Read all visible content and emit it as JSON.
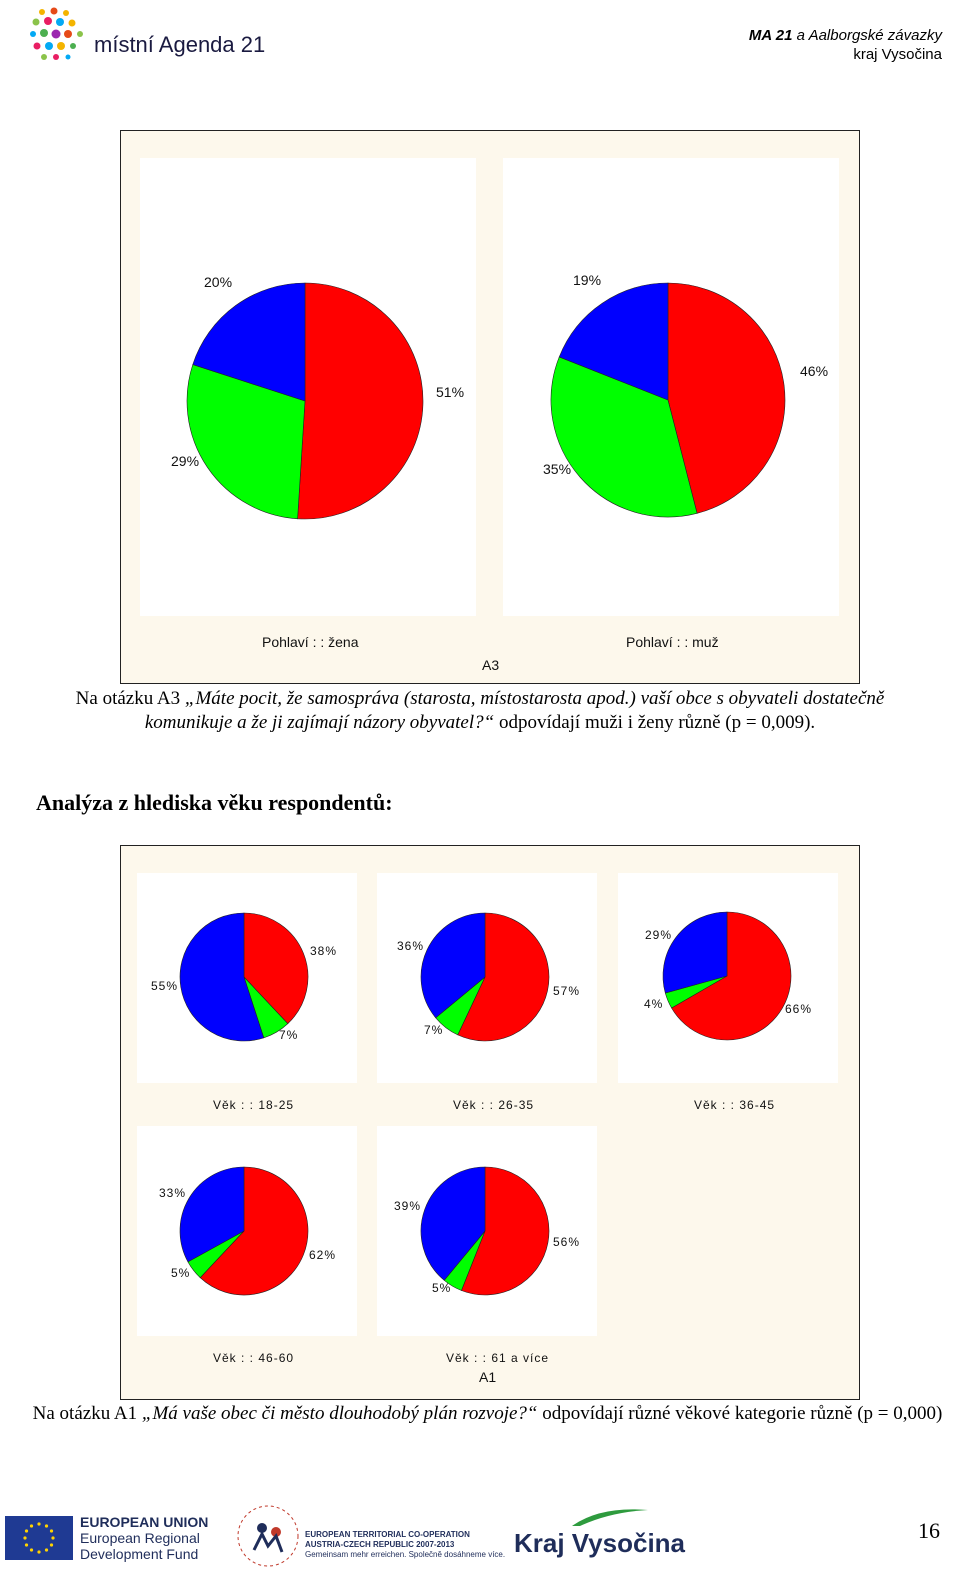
{
  "header": {
    "logo_text": "místní Agenda 21",
    "right_line1_bold": "MA 21",
    "right_line1_rest": " a Aalborgské závazky",
    "right_line2": "kraj Vysočina"
  },
  "chart_top": {
    "type": "pie",
    "overall_label": "A3",
    "colors": [
      "#ff0000",
      "#00ff00",
      "#0000ff"
    ],
    "panels": [
      {
        "label": "Pohlaví : : žena",
        "values": [
          51,
          29,
          20
        ],
        "value_labels": [
          "51%",
          "29%",
          "20%"
        ]
      },
      {
        "label": "Pohlaví : : muž",
        "values": [
          46,
          35,
          19
        ],
        "value_labels": [
          "46%",
          "35%",
          "19%"
        ]
      }
    ]
  },
  "paragraph1": {
    "prefix": "Na otázku A3 ",
    "question": "„Máte pocit, že samospráva (starosta, místostarosta apod.) vaší obce s obyvateli dostatečně komunikuje a že ji zajímají názory obyvatel?“",
    "suffix": " odpovídají muži i ženy různě (p = 0,009)."
  },
  "heading": "Analýza z hlediska věku respondentů:",
  "chart_bottom": {
    "type": "pie",
    "overall_label": "A1",
    "colors": [
      "#ff0000",
      "#00ff00",
      "#0000ff"
    ],
    "panels": [
      {
        "label": "Věk : : 18-25",
        "values": [
          38,
          7,
          55
        ],
        "value_labels": [
          "38%",
          "7%",
          "55%"
        ]
      },
      {
        "label": "Věk : : 26-35",
        "values": [
          57,
          7,
          36
        ],
        "value_labels": [
          "57%",
          "7%",
          "36%"
        ]
      },
      {
        "label": "Věk : : 36-45",
        "values": [
          66,
          4,
          29
        ],
        "value_labels": [
          "66%",
          "4%",
          "29%"
        ]
      },
      {
        "label": "Věk : : 46-60",
        "values": [
          62,
          5,
          33
        ],
        "value_labels": [
          "62%",
          "5%",
          "33%"
        ]
      },
      {
        "label": "Věk : : 61 a více",
        "values": [
          56,
          5,
          39
        ],
        "value_labels": [
          "56%",
          "5%",
          "39%"
        ]
      }
    ]
  },
  "paragraph2": {
    "prefix": "Na otázku A1 ",
    "question": "„Má vaše obec či město dlouhodobý plán rozvoje?“",
    "suffix": " odpovídají různé věkové kategorie různě (p = 0,000)"
  },
  "footer": {
    "eu_line1": "EUROPEAN UNION",
    "eu_line2": "European Regional",
    "eu_line3": "Development Fund",
    "etc_line1": "EUROPEAN TERRITORIAL CO-OPERATION",
    "etc_line2": "AUSTRIA-CZECH REPUBLIC 2007-2013",
    "etc_line3": "Gemeinsam mehr erreichen. Společně dosáhneme více.",
    "kraj_logo": "Kraj Vysočina",
    "page_number": "16"
  }
}
